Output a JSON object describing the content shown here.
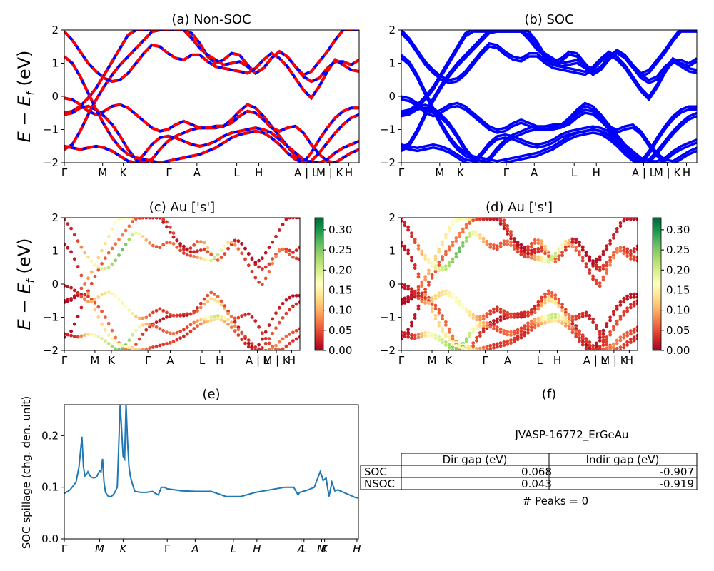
{
  "figure_title": "",
  "material": "JVASP-16772_ErGeAu",
  "peaks_text": "# Peaks = 0",
  "colors": {
    "nonsoc_a": "#ff0000",
    "nonsoc_b": "#0000ff",
    "soc": "#0000ff",
    "spillage": "#1f77b4",
    "cmap": "RdYlGn"
  },
  "chart_data": [
    {
      "panel": "a",
      "type": "line",
      "title": "(a) Non-SOC",
      "ylabel": "E − E_f (eV)",
      "xticks": [
        "Γ",
        "M",
        "K",
        "Γ",
        "A",
        "L",
        "H",
        "A | L",
        "M | K",
        "H"
      ],
      "ylim": [
        -2,
        2
      ],
      "yticks": [
        "−2",
        "−1",
        "0",
        "1",
        "2"
      ],
      "series_style": "red dashed over blue",
      "bands": [
        [
          -0.5,
          -0.45,
          -0.3,
          -0.05,
          0.25,
          0.65,
          1.05,
          1.45,
          1.85,
          2.0,
          2.0,
          2.0,
          2.0,
          2.0,
          2.0,
          2.0,
          1.9,
          1.6,
          1.2,
          1.0,
          1.1,
          1.3,
          1.25,
          0.95,
          0.7,
          0.85,
          1.15,
          1.35,
          1.2,
          0.9,
          0.6,
          0.45,
          0.55,
          0.85,
          1.05,
          1.05,
          0.95,
          1.1
        ],
        [
          -1.6,
          -1.45,
          -1.05,
          -0.55,
          -0.1,
          0.3,
          0.65,
          0.95,
          1.2,
          1.45,
          1.7,
          1.95,
          2.0,
          2.0,
          2.0,
          2.0,
          1.75,
          1.45,
          1.25,
          1.1,
          0.95,
          1.0,
          1.05,
          0.9,
          0.7,
          0.85,
          1.15,
          1.35,
          1.2,
          0.9,
          0.65,
          0.75,
          1.05,
          1.35,
          1.7,
          2.0,
          2.0,
          2.0
        ],
        [
          1.95,
          1.7,
          1.35,
          1.0,
          0.75,
          0.55,
          0.45,
          0.5,
          0.7,
          1.0,
          1.3,
          1.55,
          1.5,
          1.3,
          1.15,
          1.1,
          1.25,
          1.25,
          1.05,
          0.9,
          0.85,
          0.8,
          0.75,
          0.7,
          0.85,
          1.1,
          1.3,
          1.15,
          0.9,
          0.55,
          0.2,
          -0.05,
          0.3,
          0.75,
          1.1,
          0.95,
          0.8,
          0.75
        ],
        [
          -0.55,
          -0.5,
          -0.35,
          -0.3,
          -0.4,
          -0.6,
          -0.85,
          -1.2,
          -1.6,
          -1.9,
          -2.0,
          -1.9,
          -1.6,
          -1.35,
          -1.2,
          -1.1,
          -1.0,
          -0.95,
          -0.95,
          -0.95,
          -0.9,
          -0.7,
          -0.45,
          -0.25,
          -0.35,
          -0.6,
          -0.9,
          -1.2,
          -1.5,
          -1.8,
          -2.0,
          -1.7,
          -1.3,
          -0.95,
          -0.65,
          -0.45,
          -0.35,
          -0.35
        ],
        [
          -0.05,
          -0.1,
          -0.25,
          -0.45,
          -0.55,
          -0.45,
          -0.3,
          -0.25,
          -0.35,
          -0.55,
          -0.75,
          -0.95,
          -1.05,
          -1.0,
          -0.85,
          -0.75,
          -0.85,
          -0.95,
          -0.95,
          -0.9,
          -0.9,
          -0.8,
          -0.6,
          -0.45,
          -0.5,
          -0.7,
          -0.95,
          -1.05,
          -0.95,
          -0.9,
          -1.1,
          -1.45,
          -1.75,
          -1.95,
          -2.0,
          -1.85,
          -1.7,
          -1.6
        ],
        [
          -1.5,
          -1.55,
          -1.6,
          -1.55,
          -1.5,
          -1.55,
          -1.65,
          -1.8,
          -1.95,
          -2.0,
          -1.75,
          -1.45,
          -1.25,
          -1.2,
          -1.25,
          -1.35,
          -1.45,
          -1.5,
          -1.45,
          -1.35,
          -1.2,
          -1.1,
          -1.05,
          -1.0,
          -0.95,
          -1.0,
          -1.1,
          -1.3,
          -1.5,
          -1.7,
          -1.9,
          -2.0,
          -2.0,
          -1.9,
          -1.7,
          -1.55,
          -1.45,
          -1.35
        ],
        [
          1.2,
          1.0,
          0.6,
          0.1,
          -0.4,
          -0.85,
          -1.25,
          -1.55,
          -1.75,
          -1.85,
          -1.9,
          -1.95,
          -2.0,
          -1.95,
          -1.9,
          -1.85,
          -1.8,
          -1.75,
          -1.65,
          -1.55,
          -1.4,
          -1.25,
          -1.15,
          -1.1,
          -1.05,
          -1.1,
          -1.25,
          -1.45,
          -1.7,
          -1.9,
          -2.0,
          -1.95,
          -1.7,
          -1.4,
          -1.1,
          -0.85,
          -0.65,
          -0.55
        ]
      ]
    },
    {
      "panel": "b",
      "type": "line",
      "title": "(b) SOC",
      "xticks": [
        "Γ",
        "M",
        "K",
        "Γ",
        "A",
        "L",
        "H",
        "A | L",
        "M | K",
        "H"
      ],
      "ylim": [
        -2,
        2
      ],
      "yticks": [
        "−2",
        "−1",
        "0",
        "1",
        "2"
      ],
      "splitting": 0.09,
      "bands": [
        [
          -0.5,
          -0.45,
          -0.3,
          -0.05,
          0.25,
          0.65,
          1.05,
          1.45,
          1.85,
          2.0,
          2.0,
          2.0,
          2.0,
          2.0,
          2.0,
          2.0,
          1.9,
          1.6,
          1.2,
          1.0,
          1.1,
          1.3,
          1.25,
          0.95,
          0.7,
          0.85,
          1.15,
          1.35,
          1.2,
          0.9,
          0.6,
          0.45,
          0.55,
          0.85,
          1.05,
          1.05,
          0.95,
          1.1
        ],
        [
          -1.6,
          -1.45,
          -1.05,
          -0.55,
          -0.1,
          0.3,
          0.65,
          0.95,
          1.2,
          1.45,
          1.7,
          1.95,
          2.0,
          2.0,
          2.0,
          2.0,
          1.75,
          1.45,
          1.25,
          1.1,
          0.95,
          1.0,
          1.05,
          0.9,
          0.7,
          0.85,
          1.15,
          1.35,
          1.2,
          0.9,
          0.65,
          0.75,
          1.05,
          1.35,
          1.7,
          2.0,
          2.0,
          2.0
        ],
        [
          1.95,
          1.7,
          1.35,
          1.0,
          0.75,
          0.55,
          0.45,
          0.5,
          0.7,
          1.0,
          1.3,
          1.55,
          1.5,
          1.3,
          1.15,
          1.1,
          1.25,
          1.25,
          1.05,
          0.9,
          0.85,
          0.8,
          0.75,
          0.7,
          0.85,
          1.1,
          1.3,
          1.15,
          0.9,
          0.55,
          0.2,
          -0.05,
          0.3,
          0.75,
          1.1,
          0.95,
          0.8,
          0.75
        ],
        [
          -0.55,
          -0.5,
          -0.35,
          -0.3,
          -0.4,
          -0.6,
          -0.85,
          -1.2,
          -1.6,
          -1.9,
          -2.0,
          -1.9,
          -1.6,
          -1.35,
          -1.2,
          -1.1,
          -1.0,
          -0.95,
          -0.95,
          -0.95,
          -0.9,
          -0.7,
          -0.45,
          -0.25,
          -0.35,
          -0.6,
          -0.9,
          -1.2,
          -1.5,
          -1.8,
          -2.0,
          -1.7,
          -1.3,
          -0.95,
          -0.65,
          -0.45,
          -0.35,
          -0.35
        ],
        [
          -0.05,
          -0.1,
          -0.25,
          -0.45,
          -0.55,
          -0.45,
          -0.3,
          -0.25,
          -0.35,
          -0.55,
          -0.75,
          -0.95,
          -1.05,
          -1.0,
          -0.85,
          -0.75,
          -0.85,
          -0.95,
          -0.95,
          -0.9,
          -0.9,
          -0.8,
          -0.6,
          -0.45,
          -0.5,
          -0.7,
          -0.95,
          -1.05,
          -0.95,
          -0.9,
          -1.1,
          -1.45,
          -1.75,
          -1.95,
          -2.0,
          -1.85,
          -1.7,
          -1.6
        ],
        [
          -1.5,
          -1.55,
          -1.6,
          -1.55,
          -1.5,
          -1.55,
          -1.65,
          -1.8,
          -1.95,
          -2.0,
          -1.75,
          -1.45,
          -1.25,
          -1.2,
          -1.25,
          -1.35,
          -1.45,
          -1.5,
          -1.45,
          -1.35,
          -1.2,
          -1.1,
          -1.05,
          -1.0,
          -0.95,
          -1.0,
          -1.1,
          -1.3,
          -1.5,
          -1.7,
          -1.9,
          -2.0,
          -2.0,
          -1.9,
          -1.7,
          -1.55,
          -1.45,
          -1.35
        ],
        [
          1.2,
          1.0,
          0.6,
          0.1,
          -0.4,
          -0.85,
          -1.25,
          -1.55,
          -1.75,
          -1.85,
          -1.9,
          -1.95,
          -2.0,
          -1.95,
          -1.9,
          -1.85,
          -1.8,
          -1.75,
          -1.65,
          -1.55,
          -1.4,
          -1.25,
          -1.15,
          -1.1,
          -1.05,
          -1.1,
          -1.25,
          -1.45,
          -1.7,
          -1.9,
          -2.0,
          -1.95,
          -1.7,
          -1.4,
          -1.1,
          -0.85,
          -0.65,
          -0.55
        ]
      ]
    },
    {
      "panel": "c",
      "type": "scatter",
      "title": "(c)  Au ['s']",
      "ylabel": "E − E_f (eV)",
      "xticks": [
        "Γ",
        "M",
        "K",
        "Γ",
        "A",
        "L",
        "H",
        "A | L",
        "M | K",
        "H"
      ],
      "ylim": [
        -2,
        2
      ],
      "yticks": [
        "−2",
        "−1",
        "0",
        "1",
        "2"
      ],
      "colorbar": {
        "range": [
          0.0,
          0.33
        ],
        "ticks": [
          "0.00",
          "0.05",
          "0.10",
          "0.15",
          "0.20",
          "0.25",
          "0.30"
        ]
      },
      "weights": [
        0.02,
        0.02,
        0.03,
        0.08,
        0.12,
        0.15,
        0.16,
        0.18,
        0.2,
        0.22,
        0.2,
        0.16,
        0.12,
        0.08,
        0.05,
        0.04,
        0.05,
        0.06,
        0.04,
        0.03,
        0.05,
        0.08,
        0.12,
        0.16,
        0.18,
        0.14,
        0.1,
        0.06,
        0.04,
        0.03,
        0.03,
        0.04,
        0.05,
        0.07,
        0.06,
        0.05,
        0.04,
        0.03
      ]
    },
    {
      "panel": "d",
      "type": "scatter",
      "title": "(d) Au ['s']",
      "xticks": [
        "Γ",
        "M",
        "K",
        "Γ",
        "A",
        "L",
        "H",
        "A | L",
        "M | K",
        "H"
      ],
      "ylim": [
        -2,
        2
      ],
      "yticks": [
        "−2",
        "−1",
        "0",
        "1",
        "2"
      ],
      "colorbar": {
        "range": [
          0.0,
          0.33
        ],
        "ticks": [
          "0.00",
          "0.05",
          "0.10",
          "0.15",
          "0.20",
          "0.25",
          "0.30"
        ]
      },
      "weights": [
        0.02,
        0.02,
        0.03,
        0.08,
        0.12,
        0.15,
        0.16,
        0.18,
        0.2,
        0.22,
        0.2,
        0.16,
        0.12,
        0.08,
        0.05,
        0.04,
        0.05,
        0.06,
        0.04,
        0.03,
        0.05,
        0.08,
        0.12,
        0.16,
        0.18,
        0.14,
        0.1,
        0.06,
        0.04,
        0.03,
        0.03,
        0.04,
        0.05,
        0.07,
        0.06,
        0.05,
        0.04,
        0.03
      ]
    },
    {
      "panel": "e",
      "type": "line",
      "title": "(e)",
      "ylabel": "SOC spillage (chg. den. unit)",
      "xticks": [
        "Γ",
        "M",
        "K",
        "Γ",
        "A",
        "L",
        "H",
        "A",
        "L",
        "M",
        "K",
        "H"
      ],
      "ylim": [
        0.0,
        0.26
      ],
      "yticks": [
        "0.0",
        "0.1",
        "0.2"
      ],
      "x": [
        0,
        0.02,
        0.04,
        0.05,
        0.06,
        0.065,
        0.07,
        0.075,
        0.08,
        0.09,
        0.1,
        0.11,
        0.12,
        0.125,
        0.13,
        0.135,
        0.14,
        0.15,
        0.16,
        0.17,
        0.18,
        0.19,
        0.2,
        0.205,
        0.21,
        0.215,
        0.22,
        0.225,
        0.23,
        0.235,
        0.24,
        0.26,
        0.28,
        0.3,
        0.31,
        0.32,
        0.33,
        0.34,
        0.35,
        0.4,
        0.45,
        0.5,
        0.55,
        0.6,
        0.65,
        0.7,
        0.75,
        0.78,
        0.79,
        0.795,
        0.8,
        0.83,
        0.85,
        0.86,
        0.87,
        0.875,
        0.88,
        0.89,
        0.9,
        0.91,
        0.92,
        0.93,
        0.95,
        0.97,
        0.99,
        1.0
      ],
      "values": [
        0.088,
        0.095,
        0.11,
        0.14,
        0.198,
        0.14,
        0.122,
        0.125,
        0.13,
        0.12,
        0.118,
        0.12,
        0.132,
        0.13,
        0.155,
        0.11,
        0.09,
        0.082,
        0.082,
        0.088,
        0.1,
        0.262,
        0.16,
        0.155,
        0.262,
        0.19,
        0.14,
        0.12,
        0.11,
        0.1,
        0.092,
        0.09,
        0.09,
        0.092,
        0.088,
        0.085,
        0.1,
        0.1,
        0.097,
        0.093,
        0.092,
        0.092,
        0.082,
        0.082,
        0.09,
        0.095,
        0.1,
        0.1,
        0.09,
        0.085,
        0.09,
        0.095,
        0.1,
        0.115,
        0.13,
        0.123,
        0.113,
        0.118,
        0.082,
        0.11,
        0.093,
        0.095,
        0.09,
        0.085,
        0.08,
        0.079
      ]
    },
    {
      "panel": "f",
      "type": "table",
      "title": "(f)",
      "columns": [
        "Dir gap (eV)",
        "Indir gap (eV)"
      ],
      "rows": [
        {
          "label": "SOC",
          "values": [
            "0.068",
            "-0.907"
          ]
        },
        {
          "label": "NSOC",
          "values": [
            "0.043",
            "-0.919"
          ]
        }
      ]
    }
  ]
}
